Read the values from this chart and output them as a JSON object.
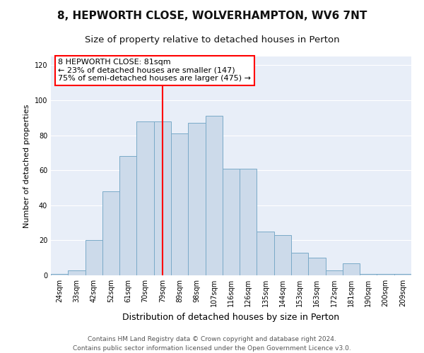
{
  "title1": "8, HEPWORTH CLOSE, WOLVERHAMPTON, WV6 7NT",
  "title2": "Size of property relative to detached houses in Perton",
  "xlabel": "Distribution of detached houses by size in Perton",
  "ylabel": "Number of detached properties",
  "categories": [
    "24sqm",
    "33sqm",
    "42sqm",
    "52sqm",
    "61sqm",
    "70sqm",
    "79sqm",
    "89sqm",
    "98sqm",
    "107sqm",
    "116sqm",
    "126sqm",
    "135sqm",
    "144sqm",
    "153sqm",
    "163sqm",
    "172sqm",
    "181sqm",
    "190sqm",
    "200sqm",
    "209sqm"
  ],
  "values": [
    1,
    3,
    20,
    48,
    68,
    88,
    88,
    81,
    87,
    91,
    61,
    61,
    25,
    23,
    13,
    10,
    3,
    7,
    1,
    1,
    1
  ],
  "bar_color": "#ccdaea",
  "bar_edge_color": "#7aaac8",
  "red_line_index": 6,
  "annotation_line1": "8 HEPWORTH CLOSE: 81sqm",
  "annotation_line2": "← 23% of detached houses are smaller (147)",
  "annotation_line3": "75% of semi-detached houses are larger (475) →",
  "ylim": [
    0,
    125
  ],
  "yticks": [
    0,
    20,
    40,
    60,
    80,
    100,
    120
  ],
  "plot_background": "#e8eef8",
  "title1_fontsize": 11,
  "title2_fontsize": 9.5,
  "xlabel_fontsize": 9,
  "ylabel_fontsize": 8,
  "tick_fontsize": 7,
  "annotation_fontsize": 8,
  "footer_fontsize": 6.5,
  "footer1": "Contains HM Land Registry data © Crown copyright and database right 2024.",
  "footer2": "Contains public sector information licensed under the Open Government Licence v3.0."
}
